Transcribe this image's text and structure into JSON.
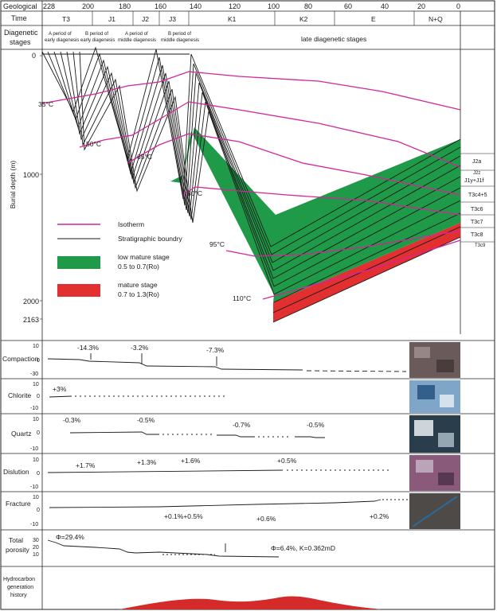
{
  "header": {
    "geological_label": "Geological",
    "age_ticks": [
      "228",
      "200",
      "180",
      "160",
      "140",
      "120",
      "100",
      "80",
      "60",
      "40",
      "20",
      "0"
    ],
    "time_label": "Time",
    "periods": [
      "T3",
      "J1",
      "J2",
      "J3",
      "K1",
      "K2",
      "E",
      "N+Q"
    ],
    "diagenetic_label": "Diagenetic stages",
    "stages": [
      "A period of early diagenesis",
      "B period of early diagenesis",
      "A period of middle diagenesis",
      "B period of middle diagenesis",
      "late diagenetic stages"
    ]
  },
  "burial": {
    "ylabel": "Burial depth (m)",
    "depth_ticks": [
      "0",
      "1000",
      "2000",
      "2163"
    ],
    "isotherms": [
      "35°C",
      "50°C",
      "65°C",
      "80°C",
      "95°C",
      "110°C"
    ],
    "formations": [
      "J2a",
      "J2z",
      "J1y+J1f",
      "T3c4+5",
      "T3c6",
      "T3c7",
      "T3c8",
      "T3c9"
    ]
  },
  "legend": {
    "isotherm": "Isotherm",
    "strat": "Stratigraphic boundry",
    "low_mature": "low mature stage",
    "low_mature_range": "0.5 to 0.7(Ro)",
    "mature": "mature stage",
    "mature_range": "0.7 to 1.3(Ro)"
  },
  "colors": {
    "isotherm": "#d4259a",
    "low_mature": "#1f9a48",
    "mature": "#e22f2f",
    "hydrocarbon": "#d42a2a"
  },
  "panels": {
    "compaction": {
      "label": "Compaction",
      "ticks": [
        "10",
        "0",
        "-30"
      ],
      "values": [
        "-14.3%",
        "-3.2%",
        "-7.3%"
      ]
    },
    "chlorite": {
      "label": "Chlorite",
      "ticks": [
        "10",
        "0",
        "-10"
      ],
      "values": [
        "+3%"
      ]
    },
    "quartz": {
      "label": "Quartz",
      "ticks": [
        "10",
        "0",
        "-10"
      ],
      "values": [
        "-0.3%",
        "-0.5%",
        "-0.7%",
        "-0.5%"
      ]
    },
    "dissolution": {
      "label": "Dislution",
      "ticks": [
        "10",
        "0",
        "-10"
      ],
      "values": [
        "+1.7%",
        "+1.3%",
        "+1.6%",
        "+0.5%"
      ]
    },
    "fracture": {
      "label": "Fracture",
      "ticks": [
        "10",
        "0",
        "-10"
      ],
      "values": [
        "+0.1%+0.5%",
        "+0.6%",
        "+0.2%"
      ]
    },
    "porosity": {
      "label_1": "Total",
      "label_2": "porosity",
      "ticks": [
        "30",
        "20",
        "10"
      ],
      "start": "Φ=29.4%",
      "end": "Φ=6.4%, K=0.362mD"
    },
    "hydrocarbon": {
      "label_1": "Hydrocarbon",
      "label_2": "generation",
      "label_3": "history"
    }
  }
}
